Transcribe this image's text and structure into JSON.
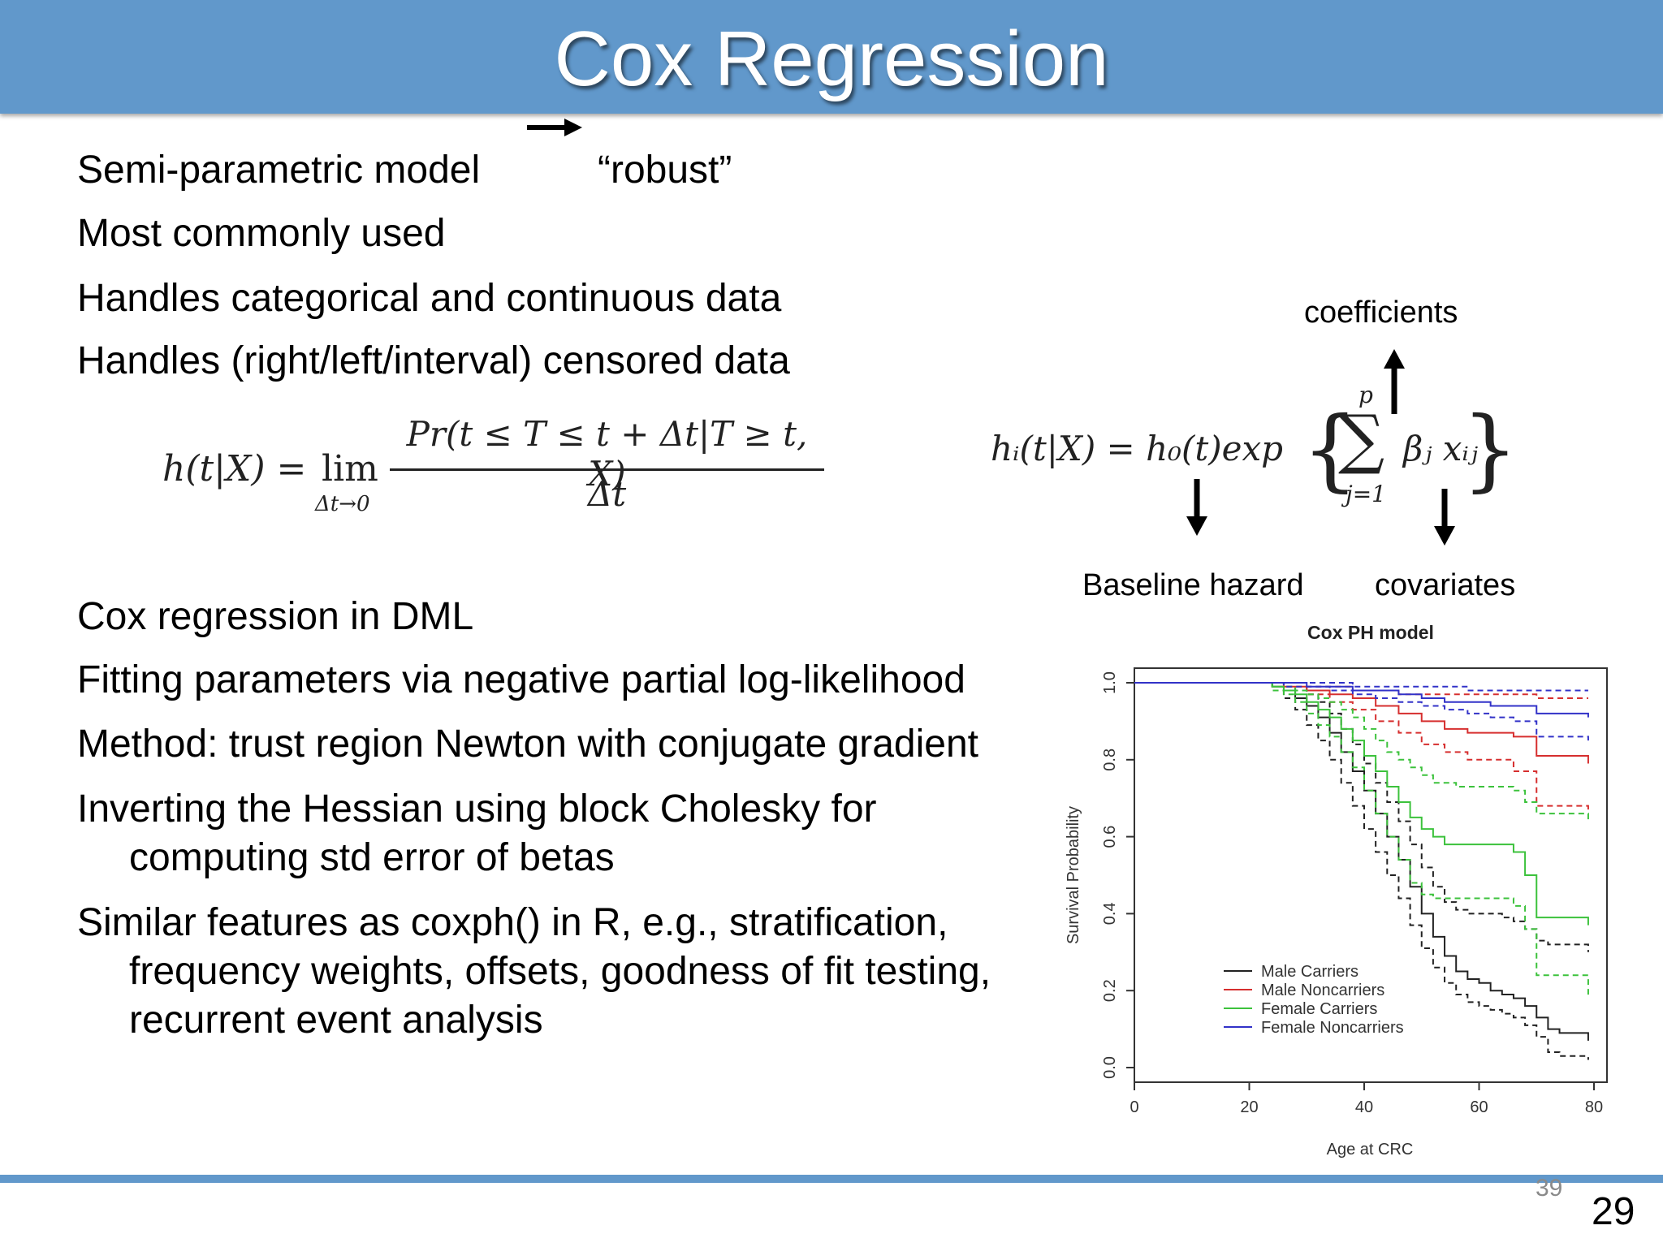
{
  "slide": {
    "title": "Cox Regression",
    "bullets_top": [
      "Semi-parametric model",
      "Most commonly used",
      "Handles categorical and continuous data",
      "Handles (right/left/interval) censored data"
    ],
    "robust_label": "“robust”",
    "bullets_bottom": [
      "Cox regression in DML",
      "Fitting parameters via negative partial log-likelihood",
      "Method: trust region Newton with conjugate gradient",
      "Inverting the Hessian using block Cholesky for computing std error of betas",
      "Similar features as coxph() in R, e.g., stratification, frequency weights, offsets, goodness of fit testing, recurrent event analysis"
    ],
    "page_small": "39",
    "page_number": "29"
  },
  "formulas": {
    "hazard_lhs": "h(t|X) =",
    "hazard_lim": "lim",
    "hazard_lim_sub": "Δt→0",
    "hazard_num": "Pr(t ≤ T ≤ t + Δt|T ≥ t, X)",
    "hazard_den": "Δt",
    "cox_lhs": "hᵢ(t|X) = h₀(t)exp",
    "cox_sum_top": "p",
    "cox_sum_bottom": "j=1",
    "cox_terms": "βⱼ xᵢⱼ"
  },
  "annotations": {
    "coefficients": "coefficients",
    "baseline_hazard": "Baseline hazard",
    "covariates": "covariates"
  },
  "chart_data": {
    "type": "line",
    "title": "Cox PH model",
    "xlabel": "Age at CRC",
    "ylabel": "Survival Probability",
    "xlim": [
      0,
      80
    ],
    "ylim": [
      0,
      1
    ],
    "xticks": [
      "0",
      "20",
      "40",
      "60",
      "80"
    ],
    "yticks": [
      "0.0",
      "0.2",
      "0.4",
      "0.6",
      "0.8",
      "1.0"
    ],
    "legend_position": "bottom-center",
    "series": [
      {
        "name": "Male Carriers",
        "color": "#222222",
        "style": "solid",
        "x": [
          0,
          22,
          24,
          26,
          28,
          30,
          32,
          34,
          36,
          38,
          40,
          42,
          44,
          46,
          48,
          50,
          52,
          54,
          56,
          58,
          60,
          62,
          64,
          66,
          68,
          70,
          72,
          74,
          76,
          78,
          79
        ],
        "y": [
          1.0,
          1.0,
          0.99,
          0.98,
          0.96,
          0.94,
          0.91,
          0.87,
          0.82,
          0.77,
          0.72,
          0.66,
          0.6,
          0.54,
          0.47,
          0.4,
          0.34,
          0.29,
          0.25,
          0.23,
          0.22,
          0.2,
          0.19,
          0.18,
          0.16,
          0.13,
          0.1,
          0.09,
          0.09,
          0.09,
          0.07
        ]
      },
      {
        "name": "Male Carriers (CI)",
        "color": "#222222",
        "style": "dashed",
        "x": [
          0,
          22,
          24,
          26,
          28,
          30,
          32,
          34,
          36,
          38,
          40,
          42,
          44,
          46,
          48,
          50,
          52,
          54,
          56,
          58,
          60,
          62,
          64,
          66,
          68,
          70,
          72,
          74,
          76,
          78,
          79
        ],
        "y": [
          1.0,
          1.0,
          0.98,
          0.96,
          0.93,
          0.89,
          0.85,
          0.8,
          0.74,
          0.68,
          0.62,
          0.56,
          0.5,
          0.44,
          0.37,
          0.31,
          0.26,
          0.22,
          0.19,
          0.17,
          0.16,
          0.15,
          0.14,
          0.13,
          0.11,
          0.08,
          0.04,
          0.03,
          0.03,
          0.03,
          0.02
        ]
      },
      {
        "name": "Male Carriers (CI upper)",
        "color": "#222222",
        "style": "dashed",
        "x": [
          0,
          22,
          24,
          26,
          28,
          30,
          32,
          34,
          36,
          38,
          40,
          42,
          44,
          46,
          48,
          50,
          52,
          54,
          56,
          58,
          60,
          62,
          64,
          66,
          68,
          70,
          72,
          74,
          76,
          78,
          79
        ],
        "y": [
          1.0,
          1.0,
          1.0,
          0.99,
          0.98,
          0.97,
          0.95,
          0.92,
          0.88,
          0.84,
          0.79,
          0.74,
          0.69,
          0.64,
          0.58,
          0.52,
          0.47,
          0.43,
          0.41,
          0.4,
          0.4,
          0.4,
          0.39,
          0.38,
          0.36,
          0.33,
          0.32,
          0.32,
          0.32,
          0.32,
          0.3
        ]
      },
      {
        "name": "Male Noncarriers",
        "color": "#d62f2f",
        "style": "solid",
        "x": [
          0,
          22,
          26,
          30,
          34,
          38,
          42,
          46,
          50,
          54,
          58,
          62,
          66,
          70,
          74,
          78,
          79
        ],
        "y": [
          1.0,
          1.0,
          0.99,
          0.98,
          0.97,
          0.96,
          0.94,
          0.92,
          0.9,
          0.88,
          0.87,
          0.87,
          0.86,
          0.81,
          0.81,
          0.81,
          0.79
        ]
      },
      {
        "name": "Male Noncarriers (CI lower)",
        "color": "#d62f2f",
        "style": "dashed",
        "x": [
          0,
          22,
          26,
          30,
          34,
          38,
          42,
          46,
          50,
          54,
          58,
          62,
          66,
          70,
          74,
          78,
          79
        ],
        "y": [
          1.0,
          1.0,
          0.99,
          0.97,
          0.95,
          0.93,
          0.9,
          0.87,
          0.84,
          0.82,
          0.8,
          0.8,
          0.77,
          0.68,
          0.68,
          0.68,
          0.66
        ]
      },
      {
        "name": "Male Noncarriers (CI upper)",
        "color": "#d62f2f",
        "style": "dashed",
        "x": [
          0,
          22,
          26,
          30,
          34,
          38,
          42,
          46,
          50,
          54,
          58,
          62,
          66,
          70,
          74,
          78,
          79
        ],
        "y": [
          1.0,
          1.0,
          1.0,
          0.99,
          0.99,
          0.98,
          0.98,
          0.97,
          0.97,
          0.97,
          0.97,
          0.97,
          0.97,
          0.96,
          0.96,
          0.96,
          0.96
        ]
      },
      {
        "name": "Female Carriers",
        "color": "#3cc23c",
        "style": "solid",
        "x": [
          0,
          22,
          24,
          26,
          28,
          30,
          32,
          34,
          36,
          38,
          40,
          42,
          44,
          46,
          48,
          50,
          52,
          54,
          56,
          58,
          60,
          62,
          64,
          66,
          68,
          70,
          74,
          78,
          79
        ],
        "y": [
          1.0,
          1.0,
          0.99,
          0.98,
          0.97,
          0.95,
          0.93,
          0.91,
          0.88,
          0.85,
          0.81,
          0.77,
          0.73,
          0.69,
          0.65,
          0.62,
          0.6,
          0.58,
          0.58,
          0.58,
          0.58,
          0.58,
          0.58,
          0.56,
          0.5,
          0.39,
          0.39,
          0.39,
          0.37
        ]
      },
      {
        "name": "Female Carriers (CI lower)",
        "color": "#3cc23c",
        "style": "dashed",
        "x": [
          0,
          22,
          24,
          26,
          28,
          30,
          32,
          34,
          36,
          38,
          40,
          42,
          44,
          46,
          48,
          50,
          52,
          54,
          56,
          58,
          60,
          62,
          64,
          66,
          68,
          70,
          74,
          78,
          79
        ],
        "y": [
          1.0,
          1.0,
          0.98,
          0.97,
          0.95,
          0.92,
          0.89,
          0.86,
          0.82,
          0.78,
          0.72,
          0.66,
          0.6,
          0.54,
          0.48,
          0.45,
          0.44,
          0.44,
          0.44,
          0.44,
          0.44,
          0.44,
          0.44,
          0.42,
          0.36,
          0.24,
          0.24,
          0.24,
          0.18
        ]
      },
      {
        "name": "Female Carriers (CI upper)",
        "color": "#3cc23c",
        "style": "dashed",
        "x": [
          0,
          22,
          24,
          26,
          28,
          30,
          32,
          34,
          36,
          38,
          40,
          42,
          44,
          46,
          48,
          50,
          52,
          54,
          56,
          58,
          60,
          62,
          64,
          66,
          68,
          70,
          74,
          78,
          79
        ],
        "y": [
          1.0,
          1.0,
          1.0,
          0.99,
          0.98,
          0.97,
          0.96,
          0.95,
          0.93,
          0.91,
          0.88,
          0.85,
          0.82,
          0.8,
          0.78,
          0.76,
          0.74,
          0.74,
          0.73,
          0.73,
          0.73,
          0.73,
          0.73,
          0.72,
          0.69,
          0.66,
          0.66,
          0.66,
          0.64
        ]
      },
      {
        "name": "Female Noncarriers",
        "color": "#3232c8",
        "style": "solid",
        "x": [
          0,
          22,
          26,
          30,
          34,
          38,
          42,
          46,
          50,
          54,
          58,
          62,
          66,
          70,
          74,
          78,
          79
        ],
        "y": [
          1.0,
          1.0,
          1.0,
          0.99,
          0.99,
          0.98,
          0.98,
          0.97,
          0.96,
          0.95,
          0.95,
          0.94,
          0.94,
          0.92,
          0.92,
          0.92,
          0.91
        ]
      },
      {
        "name": "Female Noncarriers (CI lower)",
        "color": "#3232c8",
        "style": "dashed",
        "x": [
          0,
          22,
          26,
          30,
          34,
          38,
          42,
          46,
          50,
          54,
          58,
          62,
          66,
          70,
          74,
          78,
          79
        ],
        "y": [
          1.0,
          1.0,
          0.99,
          0.99,
          0.98,
          0.97,
          0.96,
          0.95,
          0.94,
          0.93,
          0.92,
          0.91,
          0.9,
          0.86,
          0.86,
          0.86,
          0.85
        ]
      },
      {
        "name": "Female Noncarriers (CI upper)",
        "color": "#3232c8",
        "style": "dashed",
        "x": [
          0,
          22,
          26,
          30,
          34,
          38,
          42,
          46,
          50,
          54,
          58,
          62,
          66,
          70,
          74,
          78,
          79
        ],
        "y": [
          1.0,
          1.0,
          1.0,
          1.0,
          1.0,
          0.99,
          0.99,
          0.99,
          0.99,
          0.99,
          0.98,
          0.98,
          0.98,
          0.98,
          0.98,
          0.98,
          0.98
        ]
      }
    ],
    "legend": [
      {
        "label": "Male Carriers",
        "color": "#222222"
      },
      {
        "label": "Male Noncarriers",
        "color": "#d62f2f"
      },
      {
        "label": "Female Carriers",
        "color": "#3cc23c"
      },
      {
        "label": "Female Noncarriers",
        "color": "#3232c8"
      }
    ]
  }
}
